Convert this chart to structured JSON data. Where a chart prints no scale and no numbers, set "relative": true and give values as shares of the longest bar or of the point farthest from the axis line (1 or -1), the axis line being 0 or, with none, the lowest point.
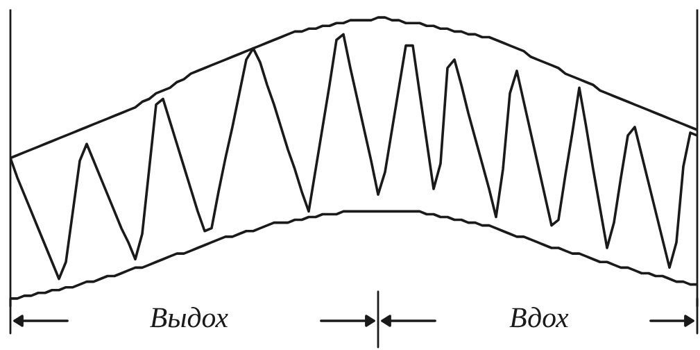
{
  "chart_data": {
    "type": "line",
    "relative": true,
    "categories": [
      null,
      null,
      null,
      null,
      null,
      null,
      null,
      null,
      null,
      null,
      null,
      null,
      null,
      null,
      null,
      null,
      null,
      null,
      null,
      null,
      null,
      null,
      null,
      null,
      null,
      null,
      null,
      null,
      null,
      null,
      null,
      null,
      null,
      null,
      null,
      null,
      null,
      null,
      null,
      null,
      null,
      null,
      null,
      null,
      null,
      null,
      null,
      null,
      null,
      null,
      null,
      null,
      null,
      null,
      null,
      null,
      null,
      null,
      null,
      null,
      null,
      null,
      null,
      null,
      null,
      null,
      null,
      null,
      null,
      null,
      null,
      null,
      null,
      null,
      null,
      null,
      null,
      null,
      null,
      null,
      null,
      null,
      null,
      null,
      null,
      null,
      null,
      null,
      null,
      null,
      null,
      null,
      null,
      null,
      null,
      null,
      null,
      null,
      null,
      null
    ],
    "series": [
      {
        "color": "#1a1a1a",
        "values": [
          0.5,
          0.51,
          0.52,
          0.53,
          0.54,
          0.55,
          0.56,
          0.57,
          0.58,
          0.59,
          0.6,
          0.61,
          0.62,
          0.63,
          0.64,
          0.65,
          0.66,
          0.67,
          0.68,
          0.7,
          0.71,
          0.73,
          0.74,
          0.75,
          0.77,
          0.78,
          0.8,
          0.81,
          0.82,
          0.83,
          0.84,
          0.85,
          0.86,
          0.87,
          0.88,
          0.89,
          0.9,
          0.91,
          0.92,
          0.93,
          0.94,
          0.95,
          0.95,
          0.96,
          0.96,
          0.97,
          0.97,
          0.98,
          0.98,
          0.99,
          0.99,
          0.99,
          0.99,
          1.0,
          1.0,
          0.99,
          0.99,
          0.98,
          0.98,
          0.98,
          0.97,
          0.97,
          0.96,
          0.96,
          0.95,
          0.95,
          0.94,
          0.94,
          0.93,
          0.93,
          0.92,
          0.91,
          0.9,
          0.89,
          0.88,
          0.86,
          0.85,
          0.84,
          0.83,
          0.82,
          0.8,
          0.79,
          0.78,
          0.77,
          0.76,
          0.74,
          0.73,
          0.72,
          0.71,
          0.7,
          0.69,
          0.68,
          0.67,
          0.66,
          0.65,
          0.64,
          0.63,
          0.62,
          0.61,
          0.6
        ]
      },
      {
        "color": "#1a1a1a",
        "values": [
          0.0,
          0.0,
          0.01,
          0.01,
          0.02,
          0.02,
          0.03,
          0.03,
          0.04,
          0.04,
          0.05,
          0.06,
          0.06,
          0.07,
          0.08,
          0.08,
          0.09,
          0.1,
          0.11,
          0.11,
          0.12,
          0.13,
          0.14,
          0.15,
          0.16,
          0.16,
          0.17,
          0.18,
          0.19,
          0.2,
          0.21,
          0.22,
          0.22,
          0.23,
          0.24,
          0.24,
          0.25,
          0.26,
          0.27,
          0.27,
          0.27,
          0.28,
          0.28,
          0.29,
          0.29,
          0.3,
          0.3,
          0.3,
          0.31,
          0.31,
          0.31,
          0.31,
          0.31,
          0.31,
          0.31,
          0.31,
          0.31,
          0.31,
          0.31,
          0.31,
          0.3,
          0.3,
          0.29,
          0.29,
          0.28,
          0.28,
          0.27,
          0.27,
          0.26,
          0.26,
          0.25,
          0.24,
          0.23,
          0.22,
          0.22,
          0.21,
          0.2,
          0.19,
          0.18,
          0.18,
          0.17,
          0.16,
          0.16,
          0.15,
          0.14,
          0.13,
          0.13,
          0.12,
          0.11,
          0.11,
          0.1,
          0.09,
          0.09,
          0.08,
          0.08,
          0.07,
          0.06,
          0.06,
          0.05,
          0.05
        ]
      },
      {
        "color": "#1a1a1a",
        "values": [
          0.5,
          0.43,
          0.37,
          0.31,
          0.25,
          0.19,
          0.13,
          0.07,
          0.13,
          0.31,
          0.49,
          0.55,
          0.49,
          0.43,
          0.37,
          0.31,
          0.25,
          0.2,
          0.14,
          0.23,
          0.46,
          0.69,
          0.71,
          0.63,
          0.55,
          0.47,
          0.39,
          0.31,
          0.24,
          0.25,
          0.38,
          0.5,
          0.61,
          0.73,
          0.85,
          0.89,
          0.84,
          0.76,
          0.69,
          0.61,
          0.53,
          0.46,
          0.38,
          0.31,
          0.46,
          0.61,
          0.76,
          0.92,
          0.94,
          0.82,
          0.71,
          0.6,
          0.49,
          0.37,
          0.45,
          0.6,
          0.75,
          0.9,
          0.9,
          0.73,
          0.56,
          0.39,
          0.48,
          0.82,
          0.85,
          0.76,
          0.66,
          0.57,
          0.48,
          0.39,
          0.29,
          0.46,
          0.73,
          0.81,
          0.7,
          0.59,
          0.48,
          0.37,
          0.26,
          0.28,
          0.44,
          0.59,
          0.75,
          0.61,
          0.46,
          0.32,
          0.18,
          0.27,
          0.43,
          0.58,
          0.61,
          0.51,
          0.41,
          0.31,
          0.21,
          0.11,
          0.2,
          0.47,
          0.59,
          0.58
        ]
      }
    ],
    "annotations": [
      "Выдох",
      "Вдох"
    ]
  }
}
